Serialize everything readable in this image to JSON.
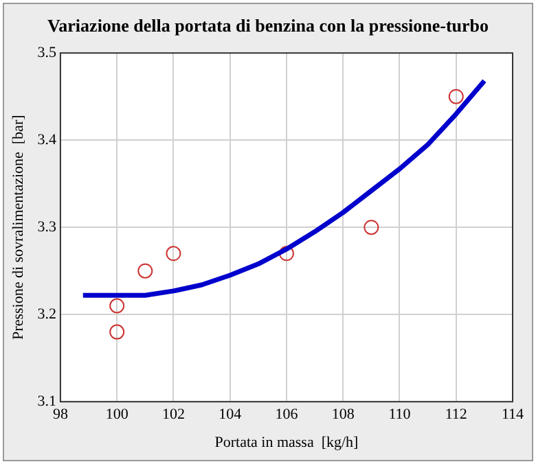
{
  "chart_data": {
    "type": "scatter",
    "title": "Variazione della portata di benzina con la pressione-turbo",
    "xlabel": "Portata in massa  [kg/h]",
    "ylabel": "Pressione di sovralimentazione  [bar]",
    "xlim": [
      98,
      114
    ],
    "xticks": [
      98,
      100,
      102,
      104,
      106,
      108,
      110,
      112,
      114
    ],
    "ylim": [
      3.1,
      3.5
    ],
    "yticks": [
      3.1,
      3.2,
      3.3,
      3.4,
      3.5
    ],
    "grid": true,
    "legend": false,
    "series": [
      {
        "type": "line",
        "color": "#0000cc",
        "marker": "none",
        "line_style": "solid",
        "x": [
          98.8,
          100,
          101,
          102,
          103,
          104,
          105,
          106,
          107,
          108,
          109,
          110,
          111,
          112,
          113
        ],
        "values": [
          3.222,
          3.222,
          3.222,
          3.227,
          3.234,
          3.245,
          3.258,
          3.275,
          3.295,
          3.317,
          3.342,
          3.367,
          3.395,
          3.43,
          3.468
        ]
      },
      {
        "type": "scatter",
        "color": "#cc3333",
        "marker": "circle",
        "x": [
          100,
          100,
          101,
          102,
          106,
          109,
          112
        ],
        "values": [
          3.21,
          3.18,
          3.25,
          3.27,
          3.27,
          3.3,
          3.45
        ]
      }
    ]
  }
}
